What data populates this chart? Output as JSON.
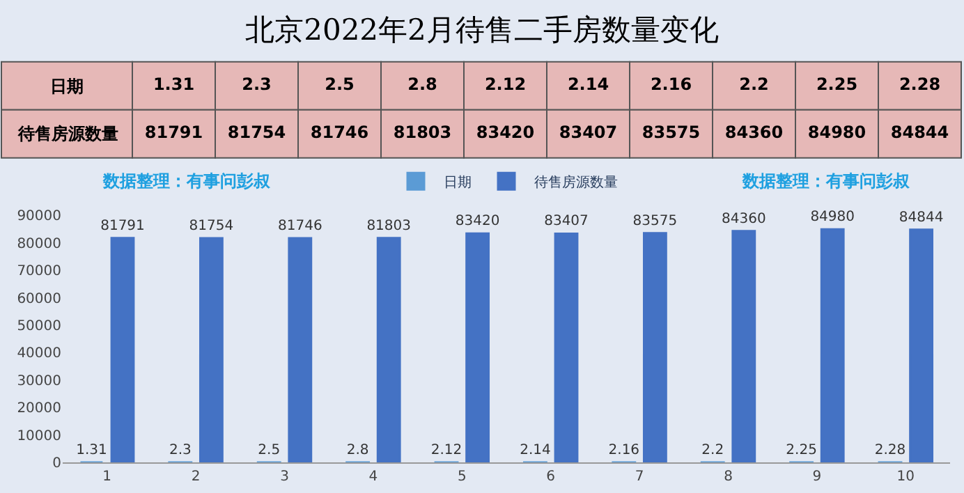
{
  "chart_data": [
    {
      "type": "other",
      "annotations": [
        "1.31",
        "2.3",
        "2.5",
        "2.8",
        "2.12",
        "2.14",
        "2.16",
        "2.2",
        "2.25",
        "2.28",
        "81791",
        "81754",
        "81746",
        "81803",
        "83420",
        "83407",
        "83575",
        "84360",
        "84980",
        "84844"
      ]
    },
    {
      "type": "bar",
      "title": "北京2022年2月待售二手房数量变化",
      "categories": [
        "1",
        "2",
        "3",
        "4",
        "5",
        "6",
        "7",
        "8",
        "9",
        "10"
      ],
      "series": [
        {
          "name": "日期",
          "color": "#5b9bd5",
          "values": [
            1.31,
            2.3,
            2.5,
            2.8,
            2.12,
            2.14,
            2.16,
            2.2,
            2.25,
            2.28
          ]
        },
        {
          "name": "待售房源数量",
          "color": "#4472c4",
          "values": [
            81791,
            81754,
            81746,
            81803,
            83420,
            83407,
            83575,
            84360,
            84980,
            84844
          ]
        }
      ],
      "ylim": [
        0,
        90000
      ],
      "yticks": [
        0,
        10000,
        20000,
        30000,
        40000,
        50000,
        60000,
        70000,
        80000,
        90000
      ],
      "data_labels": true,
      "legend": "top",
      "grid": false,
      "annotations": [
        "数据整理：有事问彭叔",
        "数据整理：有事问彭叔"
      ]
    }
  ]
}
